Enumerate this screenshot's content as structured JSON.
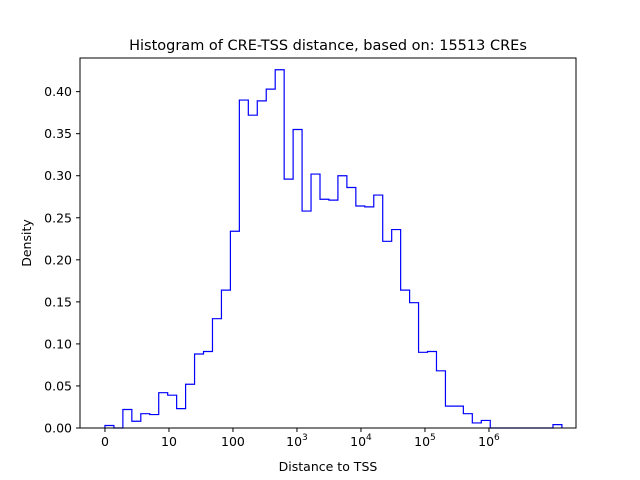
{
  "chart_data": {
    "type": "histogram",
    "title": "Histogram of CRE-TSS distance, based on: 15513 CREs",
    "xlabel": "Distance to TSS",
    "ylabel": "Density",
    "ylim": [
      0,
      0.44
    ],
    "y_ticks": [
      "0.00",
      "0.05",
      "0.10",
      "0.15",
      "0.20",
      "0.25",
      "0.30",
      "0.35",
      "0.40"
    ],
    "x_ticks": [
      {
        "label": "0"
      },
      {
        "label": "10"
      },
      {
        "label": "100"
      },
      {
        "label": "10",
        "sup": "3"
      },
      {
        "label": "10",
        "sup": "4"
      },
      {
        "label": "10",
        "sup": "5"
      },
      {
        "label": "10",
        "sup": "6"
      }
    ],
    "x_tick_values": [
      0,
      1,
      2,
      3,
      4,
      5,
      6
    ],
    "xlim": [
      -0.39,
      7.36
    ],
    "x_scale": "log10(distance + 1)",
    "bin_width": 0.14,
    "bin_starts": [
      0.0,
      0.14,
      0.28,
      0.42,
      0.56,
      0.7,
      0.84,
      0.98,
      1.12,
      1.26,
      1.4,
      1.54,
      1.68,
      1.82,
      1.96,
      2.1,
      2.24,
      2.38,
      2.52,
      2.66,
      2.8,
      2.94,
      3.08,
      3.22,
      3.36,
      3.5,
      3.64,
      3.78,
      3.92,
      4.06,
      4.2,
      4.34,
      4.48,
      4.62,
      4.76,
      4.9,
      5.04,
      5.18,
      5.32,
      5.46,
      5.6,
      5.74,
      5.88,
      6.02,
      6.16,
      6.3,
      6.44,
      6.58,
      6.72,
      6.86,
      7.0
    ],
    "densities": [
      0.003,
      0.0,
      0.022,
      0.008,
      0.017,
      0.016,
      0.042,
      0.039,
      0.023,
      0.052,
      0.088,
      0.091,
      0.13,
      0.164,
      0.234,
      0.39,
      0.372,
      0.389,
      0.403,
      0.426,
      0.296,
      0.355,
      0.258,
      0.302,
      0.272,
      0.271,
      0.3,
      0.286,
      0.264,
      0.263,
      0.277,
      0.222,
      0.236,
      0.164,
      0.149,
      0.09,
      0.091,
      0.068,
      0.026,
      0.026,
      0.017,
      0.006,
      0.009,
      0.0,
      0.0,
      0.0,
      0.0,
      0.0,
      0.0,
      0.0,
      0.004
    ],
    "line_color": "#0000ff",
    "grid": false,
    "legend": "none"
  }
}
